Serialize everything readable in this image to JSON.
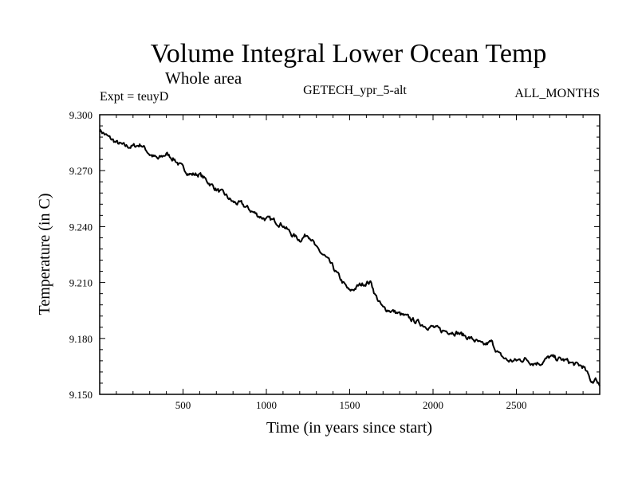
{
  "chart_data": {
    "type": "line",
    "title": "Volume Integral Lower Ocean Temp",
    "subtitle": "Whole area",
    "left_label": "Expt = teuyD",
    "center_label": "GETECH_ypr_5-alt",
    "right_label": "ALL_MONTHS",
    "xlabel": "Time (in years since start)",
    "ylabel": "Temperature (in C)",
    "xlim": [
      0,
      3000
    ],
    "ylim": [
      9.15,
      9.3
    ],
    "xticks": [
      500,
      1000,
      1500,
      2000,
      2500
    ],
    "yticks": [
      "9.150",
      "9.180",
      "9.210",
      "9.240",
      "9.270",
      "9.300"
    ],
    "grid": false,
    "series": [
      {
        "color": "#000000",
        "x": [
          0,
          50,
          100,
          150,
          200,
          250,
          300,
          350,
          400,
          450,
          500,
          550,
          600,
          650,
          700,
          750,
          800,
          850,
          900,
          950,
          1000,
          1050,
          1100,
          1150,
          1200,
          1250,
          1270,
          1300,
          1350,
          1400,
          1450,
          1500,
          1550,
          1600,
          1630,
          1650,
          1680,
          1700,
          1750,
          1800,
          1850,
          1900,
          1950,
          2000,
          2050,
          2100,
          2150,
          2200,
          2250,
          2300,
          2350,
          2400,
          2450,
          2500,
          2550,
          2600,
          2650,
          2700,
          2750,
          2800,
          2850,
          2900,
          2950,
          2980,
          3000
        ],
        "values": [
          9.292,
          9.288,
          9.285,
          9.283,
          9.283,
          9.284,
          9.279,
          9.276,
          9.279,
          9.276,
          9.271,
          9.268,
          9.268,
          9.264,
          9.26,
          9.257,
          9.253,
          9.252,
          9.249,
          9.246,
          9.244,
          9.243,
          9.241,
          9.236,
          9.233,
          9.236,
          9.234,
          9.228,
          9.224,
          9.218,
          9.211,
          9.205,
          9.208,
          9.21,
          9.21,
          9.204,
          9.199,
          9.196,
          9.195,
          9.193,
          9.191,
          9.189,
          9.187,
          9.186,
          9.184,
          9.184,
          9.183,
          9.181,
          9.179,
          9.176,
          9.178,
          9.171,
          9.168,
          9.168,
          9.169,
          9.167,
          9.167,
          9.17,
          9.169,
          9.168,
          9.166,
          9.165,
          9.157,
          9.158,
          9.155
        ]
      }
    ]
  }
}
